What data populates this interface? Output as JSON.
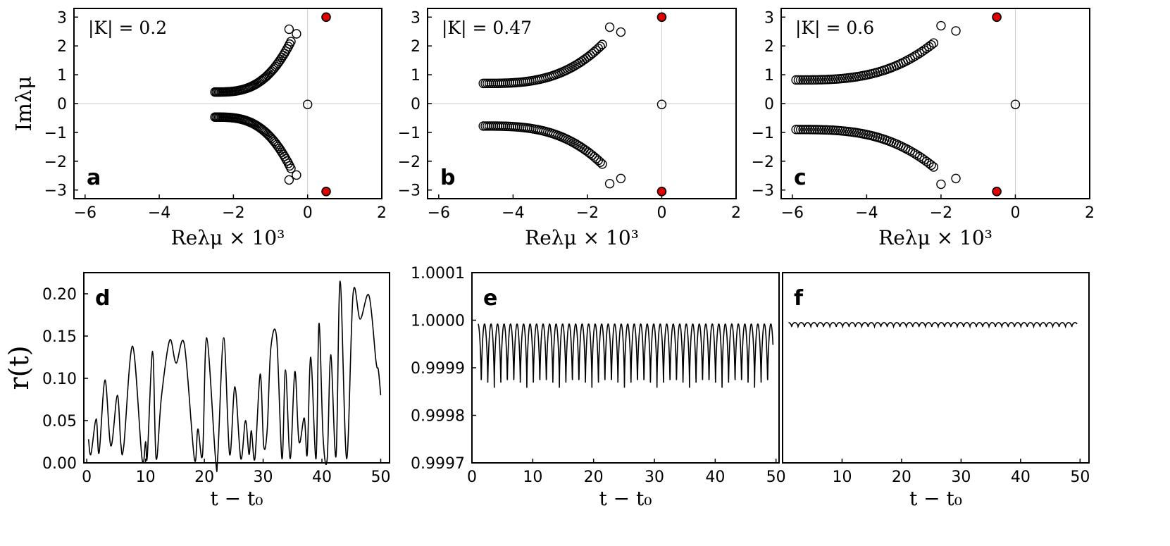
{
  "chart_data": [
    {
      "id": "a",
      "type": "scatter",
      "panel_label": "a",
      "annotation": "|K| = 0.2",
      "xlabel": "Reλμ × 10³",
      "ylabel": "Imλμ",
      "xlim": [
        -6.3,
        2.0
      ],
      "ylim": [
        -3.3,
        3.3
      ],
      "xticks": [
        -6,
        -4,
        -2,
        0,
        2
      ],
      "yticks": [
        -3,
        -2,
        -1,
        0,
        1,
        2,
        3
      ],
      "grid_zero_lines": true,
      "branches": [
        {
          "x_start": -2.5,
          "x_end": -0.45,
          "y_start": 0.4,
          "y_end": 2.15,
          "count": 60
        },
        {
          "x_start": -2.5,
          "x_end": -0.45,
          "y_start": -0.47,
          "y_end": -2.25,
          "count": 60
        }
      ],
      "extra_points": [
        {
          "x": -0.5,
          "y": 2.58
        },
        {
          "x": -0.3,
          "y": 2.42
        },
        {
          "x": -0.5,
          "y": -2.65
        },
        {
          "x": -0.3,
          "y": -2.48
        },
        {
          "x": 0.0,
          "y": -0.03
        }
      ],
      "red_points": [
        {
          "x": 0.5,
          "y": 3.0
        },
        {
          "x": 0.5,
          "y": -3.05
        }
      ]
    },
    {
      "id": "b",
      "type": "scatter",
      "panel_label": "b",
      "annotation": "|K| = 0.47",
      "xlabel": "Reλμ × 10³",
      "ylabel": "",
      "xlim": [
        -6.3,
        2.0
      ],
      "ylim": [
        -3.3,
        3.3
      ],
      "xticks": [
        -6,
        -4,
        -2,
        0,
        2
      ],
      "yticks": [
        -3,
        -2,
        -1,
        0,
        1,
        2,
        3
      ],
      "grid_zero_lines": true,
      "branches": [
        {
          "x_start": -4.8,
          "x_end": -1.6,
          "y_start": 0.7,
          "y_end": 2.05,
          "count": 60
        },
        {
          "x_start": -4.8,
          "x_end": -1.6,
          "y_start": -0.78,
          "y_end": -2.1,
          "count": 60
        }
      ],
      "extra_points": [
        {
          "x": -1.4,
          "y": 2.65
        },
        {
          "x": -1.1,
          "y": 2.48
        },
        {
          "x": -1.4,
          "y": -2.78
        },
        {
          "x": -1.1,
          "y": -2.6
        },
        {
          "x": 0.0,
          "y": -0.03
        }
      ],
      "red_points": [
        {
          "x": 0.0,
          "y": 3.0
        },
        {
          "x": 0.0,
          "y": -3.05
        }
      ]
    },
    {
      "id": "c",
      "type": "scatter",
      "panel_label": "c",
      "annotation": "|K| = 0.6",
      "xlabel": "Reλμ × 10³",
      "ylabel": "",
      "xlim": [
        -6.3,
        2.0
      ],
      "ylim": [
        -3.3,
        3.3
      ],
      "xticks": [
        -6,
        -4,
        -2,
        0,
        2
      ],
      "yticks": [
        -3,
        -2,
        -1,
        0,
        1,
        2,
        3
      ],
      "grid_zero_lines": true,
      "branches": [
        {
          "x_start": -5.9,
          "x_end": -2.2,
          "y_start": 0.82,
          "y_end": 2.1,
          "count": 60
        },
        {
          "x_start": -5.9,
          "x_end": -2.2,
          "y_start": -0.9,
          "y_end": -2.2,
          "count": 60
        }
      ],
      "extra_points": [
        {
          "x": -2.0,
          "y": 2.7
        },
        {
          "x": -1.6,
          "y": 2.52
        },
        {
          "x": -2.0,
          "y": -2.8
        },
        {
          "x": -1.6,
          "y": -2.6
        },
        {
          "x": 0.0,
          "y": -0.03
        }
      ],
      "red_points": [
        {
          "x": -0.5,
          "y": 3.0
        },
        {
          "x": -0.5,
          "y": -3.05
        }
      ]
    },
    {
      "id": "d",
      "type": "line",
      "panel_label": "d",
      "xlabel": "t − t₀",
      "ylabel": "r(t)",
      "xlim": [
        -0.5,
        51.5
      ],
      "ylim": [
        0.0,
        0.225
      ],
      "xticks": [
        0,
        10,
        20,
        30,
        40,
        50
      ],
      "yticks": [
        0.0,
        0.05,
        0.1,
        0.15,
        0.2
      ],
      "ytick_labels": [
        "0.00",
        "0.05",
        "0.10",
        "0.15",
        "0.20"
      ],
      "series": [
        {
          "name": "r(t)",
          "x": [
            0.3,
            0.7,
            1.6,
            2.1,
            3.1,
            4.1,
            5.2,
            5.8,
            6.3,
            7.8,
            9.4,
            10.0,
            10.3,
            11.2,
            11.8,
            12.7,
            14.1,
            15.2,
            16.6,
            18.3,
            18.9,
            19.7,
            20.4,
            21.9,
            22.3,
            23.3,
            24.3,
            25.2,
            26.2,
            27.0,
            27.6,
            28.0,
            28.6,
            29.5,
            30.1,
            30.7,
            31.3,
            32.3,
            33.2,
            33.8,
            34.6,
            35.4,
            36.1,
            37.0,
            37.5,
            38.1,
            39.0,
            39.5,
            40.2,
            40.9,
            41.5,
            42.4,
            43.1,
            44.2,
            45.3,
            46.5,
            48.0,
            49.2,
            49.6,
            50.0
          ],
          "y": [
            0.028,
            0.01,
            0.052,
            0.012,
            0.098,
            0.02,
            0.08,
            0.022,
            0.02,
            0.138,
            0.005,
            0.025,
            0.008,
            0.132,
            0.005,
            0.078,
            0.145,
            0.118,
            0.14,
            0.005,
            0.04,
            0.01,
            0.148,
            0.005,
            0.01,
            0.148,
            0.01,
            0.09,
            0.005,
            0.05,
            0.01,
            0.038,
            0.005,
            0.105,
            0.02,
            0.04,
            0.135,
            0.148,
            0.005,
            0.11,
            0.005,
            0.108,
            0.025,
            0.053,
            0.01,
            0.125,
            0.005,
            0.165,
            0.03,
            0.005,
            0.128,
            0.008,
            0.215,
            0.005,
            0.2,
            0.17,
            0.198,
            0.12,
            0.11,
            0.08
          ]
        }
      ]
    },
    {
      "id": "e",
      "type": "line",
      "panel_label": "e",
      "xlabel": "t − t₀",
      "ylabel": "",
      "xlim": [
        0.0,
        50.5
      ],
      "ylim": [
        0.9997,
        1.0001
      ],
      "xticks": [
        0,
        10,
        20,
        30,
        40,
        50
      ],
      "yticks": [
        0.9997,
        0.9998,
        0.9999,
        1.0,
        1.0001
      ],
      "ytick_labels": [
        "0.9997",
        "0.9998",
        "0.9999",
        "1.0000",
        "1.0001"
      ],
      "series": [
        {
          "name": "r(t)",
          "kind": "oscillation",
          "x_start": 1.0,
          "x_end": 49.5,
          "period": 1.07,
          "y_min": 0.999858,
          "y_max": 0.999992
        }
      ]
    },
    {
      "id": "f",
      "type": "line",
      "panel_label": "f",
      "xlabel": "t − t₀",
      "ylabel": "",
      "xlim": [
        0.0,
        51.5
      ],
      "ylim": [
        0.9997,
        1.0001
      ],
      "xticks": [
        10,
        20,
        30,
        40,
        50
      ],
      "yticks": [],
      "series": [
        {
          "name": "r(t)",
          "kind": "oscillation",
          "x_start": 1.0,
          "x_end": 49.5,
          "period": 1.07,
          "y_min": 0.999986,
          "y_max": 0.999995
        }
      ]
    }
  ],
  "colors": {
    "axis": "#000000",
    "marker_fill_red": "#e00000",
    "grid": "#cccccc",
    "line": "#000000"
  }
}
